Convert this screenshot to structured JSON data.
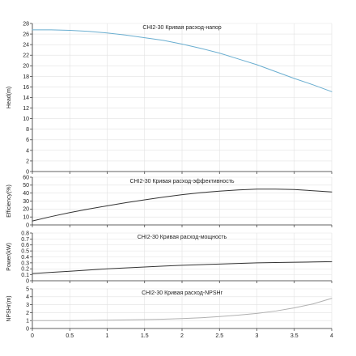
{
  "chart_data": [
    {
      "type": "line",
      "title": "CHI2-30 Кривая расход-напор",
      "ylabel": "Head(m)",
      "xlim": [
        0,
        4
      ],
      "ylim": [
        0,
        28
      ],
      "yticks": [
        0,
        2,
        4,
        6,
        8,
        10,
        12,
        14,
        16,
        18,
        20,
        22,
        24,
        26,
        28
      ],
      "grid": true,
      "color": "#6aaed0",
      "series": [
        {
          "x": [
            0,
            0.25,
            0.5,
            0.75,
            1,
            1.25,
            1.5,
            1.75,
            2,
            2.25,
            2.5,
            2.75,
            3,
            3.25,
            3.5,
            3.75,
            4
          ],
          "y": [
            26.8,
            26.8,
            26.7,
            26.5,
            26.2,
            25.8,
            25.3,
            24.8,
            24.1,
            23.3,
            22.4,
            21.3,
            20.2,
            18.9,
            17.6,
            16.4,
            15.1
          ]
        }
      ]
    },
    {
      "type": "line",
      "title": "CHI2-30 Кривая расход-эффективность",
      "ylabel": "Efficiency(%)",
      "xlim": [
        0,
        4
      ],
      "ylim": [
        0,
        60
      ],
      "yticks": [
        0,
        10,
        20,
        30,
        40,
        50,
        60
      ],
      "grid": true,
      "color": "#333333",
      "series": [
        {
          "x": [
            0,
            0.25,
            0.5,
            0.75,
            1,
            1.25,
            1.5,
            1.75,
            2,
            2.25,
            2.5,
            2.75,
            3,
            3.25,
            3.5,
            3.75,
            4
          ],
          "y": [
            5,
            10.5,
            15.5,
            20,
            24,
            28,
            31.5,
            35,
            38,
            40.5,
            42.5,
            44,
            45,
            45,
            44.5,
            43,
            41.5
          ]
        }
      ]
    },
    {
      "type": "line",
      "title": "CHI2-30 Кривая расход-мощность",
      "ylabel": "Power(kW)",
      "xlim": [
        0,
        4
      ],
      "ylim": [
        0,
        0.8
      ],
      "yticks": [
        0,
        0.1,
        0.2,
        0.3,
        0.4,
        0.5,
        0.6,
        0.7,
        0.8
      ],
      "grid": true,
      "color": "#333333",
      "series": [
        {
          "x": [
            0,
            0.25,
            0.5,
            0.75,
            1,
            1.25,
            1.5,
            1.75,
            2,
            2.25,
            2.5,
            2.75,
            3,
            3.25,
            3.5,
            3.75,
            4
          ],
          "y": [
            0.12,
            0.14,
            0.16,
            0.18,
            0.2,
            0.215,
            0.23,
            0.245,
            0.26,
            0.27,
            0.28,
            0.29,
            0.3,
            0.305,
            0.31,
            0.315,
            0.32
          ]
        }
      ]
    },
    {
      "type": "line",
      "title": "CHI2-30 Кривая расход-NPSHr",
      "ylabel": "NPSHr(m)",
      "xlim": [
        0,
        4
      ],
      "ylim": [
        0,
        5
      ],
      "yticks": [
        0,
        1,
        2,
        3,
        4,
        5
      ],
      "xticks": [
        0,
        0.5,
        1,
        1.5,
        2,
        2.5,
        3,
        3.5,
        4
      ],
      "xtick_labels": [
        "0",
        "0.5",
        "1",
        "1.5",
        "2",
        "2.5",
        "3",
        "3.5",
        "4"
      ],
      "grid": true,
      "color": "#b0b0b0",
      "series": [
        {
          "x": [
            0,
            0.25,
            0.5,
            0.75,
            1,
            1.25,
            1.5,
            1.75,
            2,
            2.25,
            2.5,
            2.75,
            3,
            3.25,
            3.5,
            3.75,
            4
          ],
          "y": [
            1,
            1,
            1,
            1.02,
            1.05,
            1.08,
            1.12,
            1.18,
            1.25,
            1.35,
            1.5,
            1.68,
            1.9,
            2.2,
            2.6,
            3.1,
            3.8
          ]
        }
      ]
    }
  ]
}
